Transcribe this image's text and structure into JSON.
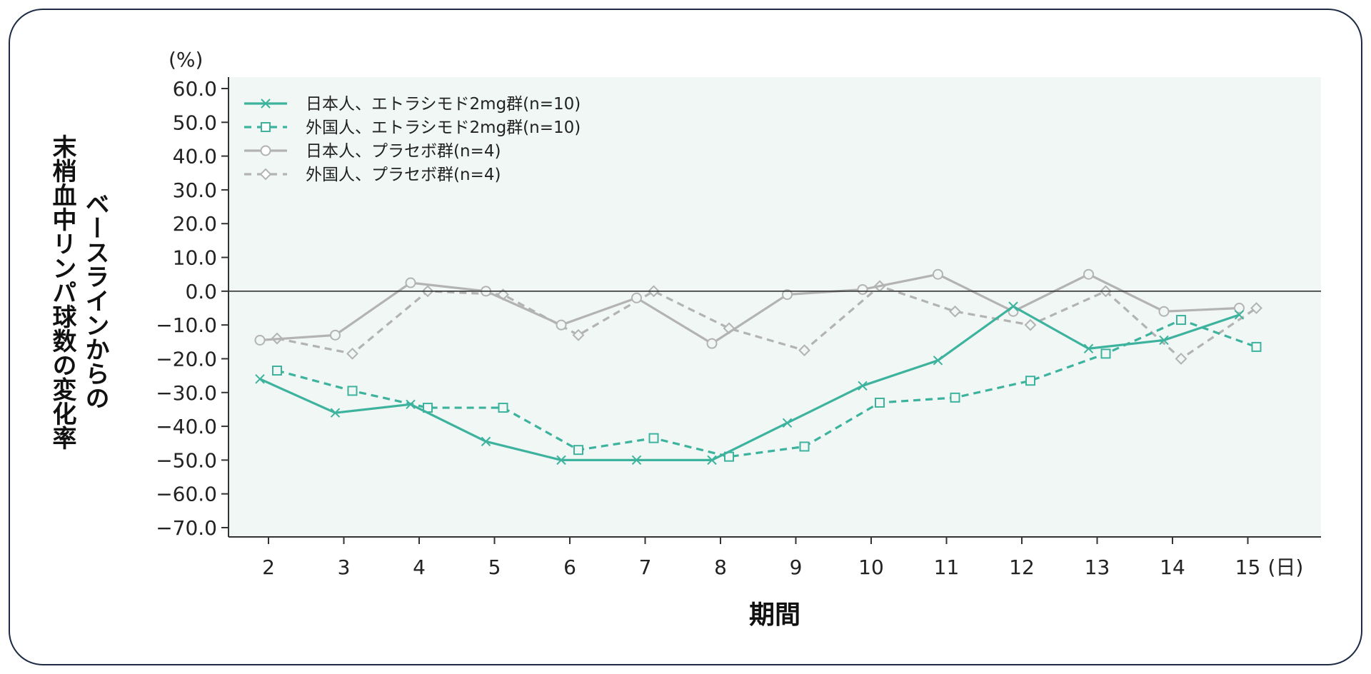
{
  "chart_data": {
    "type": "line",
    "title": "",
    "y_unit": "(%)",
    "ylabel": [
      "ベースラインからの",
      "末梢血中リンパ球数の変化率"
    ],
    "xlabel": "期間",
    "x_unit": "(日)",
    "ylim": [
      -70,
      60
    ],
    "y_ticks": [
      "60.0",
      "50.0",
      "40.0",
      "30.0",
      "20.0",
      "10.0",
      "0.0",
      "−10.0",
      "−20.0",
      "−30.0",
      "−40.0",
      "−50.0",
      "−60.0",
      "−70.0"
    ],
    "categories": [
      "2",
      "3",
      "4",
      "5",
      "6",
      "7",
      "8",
      "9",
      "10",
      "11",
      "12",
      "13",
      "14",
      "15"
    ],
    "grid": false,
    "zero_line": true,
    "legend_position": "top-left",
    "colors": {
      "teal": "#3db39e",
      "gray": "#b3b3b3",
      "plot_bg": "#f0f7f5",
      "axis": "#333333",
      "frame": "#1f2a44"
    },
    "series": [
      {
        "name": "日本人、エトラシモド2mg群(n=10)",
        "color": "#3db39e",
        "dash": false,
        "marker": "x",
        "values": [
          -26,
          -36,
          -33.5,
          -44.5,
          -50,
          -50,
          -50,
          -39,
          -28,
          -20.5,
          -4.5,
          -17,
          -14.5,
          -7
        ]
      },
      {
        "name": "外国人、エトラシモド2mg群(n=10)",
        "color": "#3db39e",
        "dash": true,
        "marker": "square",
        "values": [
          -23.5,
          -29.5,
          -34.5,
          -34.5,
          -47,
          -43.5,
          -49,
          -46,
          -33,
          -31.5,
          -26.5,
          -18.5,
          -8.5,
          -16.5
        ]
      },
      {
        "name": "日本人、プラセボ群(n=4)",
        "color": "#b3b3b3",
        "dash": false,
        "marker": "circle",
        "values": [
          -14.5,
          -13,
          2.5,
          0,
          -10,
          -2,
          -15.5,
          -1,
          0.5,
          5,
          -6,
          5,
          -6,
          -5
        ]
      },
      {
        "name": "外国人、プラセボ群(n=4)",
        "color": "#b3b3b3",
        "dash": true,
        "marker": "diamond",
        "values": [
          -14,
          -18.5,
          0,
          -1,
          -13,
          0,
          -11,
          -17.5,
          1.5,
          -6,
          -10,
          0,
          -20,
          -5
        ]
      }
    ]
  }
}
